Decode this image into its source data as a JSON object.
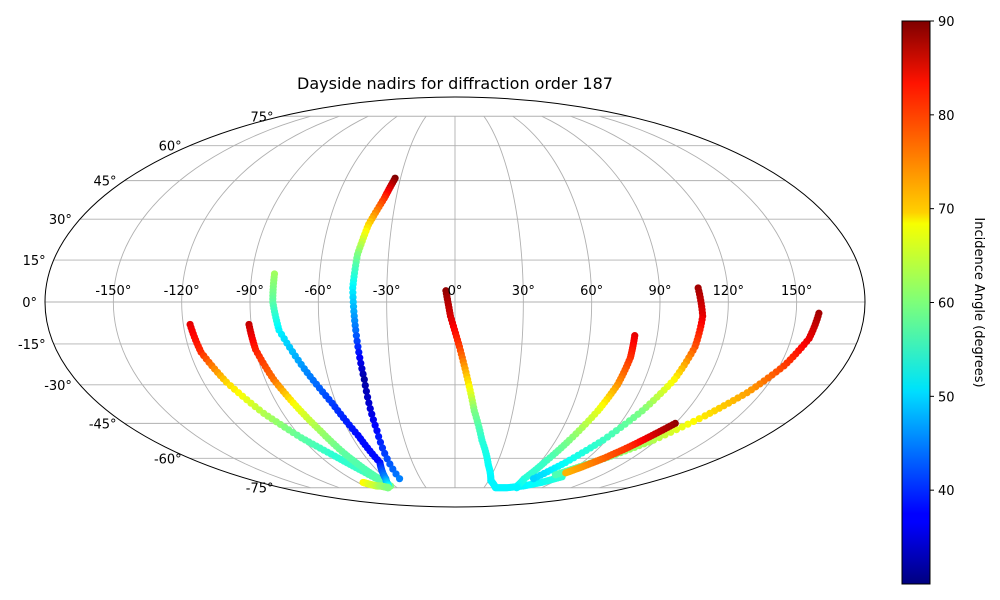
{
  "chart_data": {
    "type": "scatter",
    "title": "Dayside nadirs for diffraction order 187",
    "projection": "mollweide",
    "grid": true,
    "x_tick_labels": [
      "-150°",
      "-120°",
      "-90°",
      "-60°",
      "-30°",
      "0°",
      "30°",
      "60°",
      "90°",
      "120°",
      "150°"
    ],
    "x_ticks": [
      -150,
      -120,
      -90,
      -60,
      -30,
      0,
      30,
      60,
      90,
      120,
      150
    ],
    "y_tick_labels": [
      "-75°",
      "-60°",
      "-45°",
      "-30°",
      "-15°",
      "0°",
      "15°",
      "30°",
      "45°",
      "60°",
      "75°"
    ],
    "y_ticks": [
      -75,
      -60,
      -45,
      -30,
      -15,
      0,
      15,
      30,
      45,
      60,
      75
    ],
    "colorbar": {
      "label": "Incidence Angle (degrees)",
      "colormap": "jet",
      "vmin": 30,
      "vmax": 90,
      "ticks": [
        40,
        50,
        60,
        70,
        80,
        90
      ],
      "tick_labels": [
        "40",
        "50",
        "60",
        "70",
        "80",
        "90"
      ]
    },
    "series": [
      {
        "lon": [
          -117,
          -115,
          -109,
          -100,
          -90,
          -80,
          -72,
          -64
        ],
        "lat": [
          -8,
          -18,
          -29,
          -41,
          -51,
          -59,
          -66,
          -74
        ],
        "incidence": [
          84,
          80,
          70,
          63,
          58,
          55,
          56,
          60
        ]
      },
      {
        "lon": [
          -91,
          -90,
          -86,
          -81,
          -76,
          -72,
          -68,
          -64
        ],
        "lat": [
          -8,
          -17,
          -28,
          -38,
          -48,
          -58,
          -66,
          -73
        ],
        "incidence": [
          86,
          81,
          76,
          67,
          62,
          58,
          57,
          58
        ]
      },
      {
        "lon": [
          -80,
          -80,
          -78,
          -70,
          -62,
          -56,
          -53,
          -60,
          -66,
          -70
        ],
        "lat": [
          10,
          0,
          -10,
          -24,
          -37,
          -50,
          -62,
          -70,
          -74,
          -75
        ],
        "incidence": [
          62,
          58,
          52,
          46,
          41,
          38,
          38,
          46,
          52,
          56
        ]
      },
      {
        "lon": [
          -33,
          -36,
          -41,
          -44,
          -45,
          -44,
          -43,
          -44,
          -48
        ],
        "lat": [
          46,
          38,
          28,
          17,
          5,
          -10,
          -28,
          -48,
          -70
        ],
        "incidence": [
          90,
          80,
          70,
          60,
          52,
          44,
          32,
          38,
          45
        ]
      },
      {
        "lon": [
          -4,
          -2,
          2,
          6,
          10,
          16,
          24,
          32,
          42,
          54,
          68,
          80,
          90
        ],
        "lat": [
          4,
          -5,
          -16,
          -28,
          -40,
          -52,
          -63,
          -71,
          -75,
          -75,
          -74,
          -72,
          -69
        ],
        "incidence": [
          89,
          85,
          79,
          70,
          60,
          55,
          53,
          52,
          52,
          52,
          52,
          53,
          55
        ]
      },
      {
        "lon": [
          80,
          80,
          78,
          74,
          68,
          63,
          60,
          62,
          64
        ],
        "lat": [
          -12,
          -20,
          -30,
          -40,
          -52,
          -62,
          -70,
          -74,
          -75
        ],
        "incidence": [
          84,
          80,
          74,
          66,
          60,
          56,
          55,
          53,
          52
        ]
      },
      {
        "lon": [
          107,
          109,
          108,
          104,
          97,
          88,
          78,
          68
        ],
        "lat": [
          5,
          -5,
          -16,
          -28,
          -40,
          -52,
          -62,
          -70
        ],
        "incidence": [
          88,
          84,
          78,
          68,
          60,
          56,
          53,
          50
        ]
      },
      {
        "lon": [
          160,
          158,
          152,
          143,
          132,
          118,
          104,
          92,
          82
        ],
        "lat": [
          -4,
          -13,
          -23,
          -33,
          -42,
          -52,
          -59,
          -64,
          -68
        ],
        "incidence": [
          88,
          84,
          79,
          73,
          69,
          63,
          60,
          58,
          57
        ]
      },
      {
        "lon": [
          120,
          114,
          108,
          101,
          94,
          88
        ],
        "lat": [
          -45,
          -50,
          -55,
          -60,
          -64,
          -67
        ],
        "incidence": [
          89,
          85,
          80,
          77,
          74,
          72
        ]
      },
      {
        "lon": [
          -85,
          -82,
          -78,
          -74,
          -69
        ],
        "lat": [
          -72,
          -73,
          -74,
          -74,
          -75
        ],
        "incidence": [
          68,
          66,
          64,
          62,
          60
        ]
      }
    ]
  }
}
